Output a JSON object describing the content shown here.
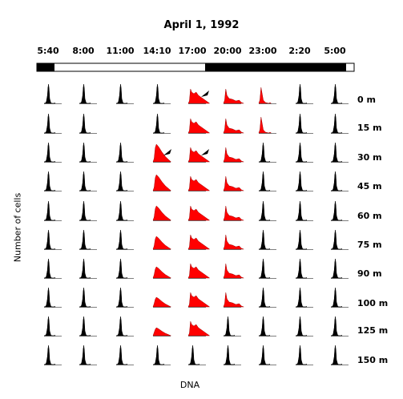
{
  "chart_data": {
    "type": "histogram-grid",
    "title": "April 1, 1992",
    "xlabel": "DNA",
    "ylabel": "Number of cells",
    "times": [
      "5:40",
      "8:00",
      "11:00",
      "14:10",
      "17:00",
      "20:00",
      "23:00",
      "2:20",
      "5:00"
    ],
    "depths": [
      "0 m",
      "15 m",
      "30 m",
      "45 m",
      "60 m",
      "75 m",
      "90 m",
      "100 m",
      "125 m",
      "150 m"
    ],
    "light_bar": [
      {
        "from": "5:40",
        "to": "6:45",
        "state": "dark"
      },
      {
        "from": "6:45",
        "to": "17:00",
        "state": "light"
      },
      {
        "from": "17:00",
        "to": "4:30",
        "state": "dark"
      },
      {
        "from": "4:30",
        "to": "5:00",
        "state": "light"
      }
    ],
    "colors": {
      "normal": "#000000",
      "highlight": "#ff0000"
    },
    "highlighted_cells": [
      [
        0,
        4
      ],
      [
        0,
        5
      ],
      [
        0,
        6
      ],
      [
        1,
        4
      ],
      [
        1,
        5
      ],
      [
        1,
        6
      ],
      [
        2,
        3
      ],
      [
        2,
        4
      ],
      [
        2,
        5
      ],
      [
        3,
        3
      ],
      [
        3,
        4
      ],
      [
        3,
        5
      ],
      [
        4,
        3
      ],
      [
        4,
        4
      ],
      [
        4,
        5
      ],
      [
        5,
        3
      ],
      [
        5,
        4
      ],
      [
        5,
        5
      ],
      [
        6,
        3
      ],
      [
        6,
        4
      ],
      [
        6,
        5
      ],
      [
        7,
        3
      ],
      [
        7,
        4
      ],
      [
        7,
        5
      ],
      [
        8,
        3
      ],
      [
        8,
        4
      ]
    ],
    "missing_cells": [
      [
        1,
        2
      ]
    ],
    "arrows": [
      [
        0,
        4
      ],
      [
        2,
        3
      ],
      [
        2,
        4
      ]
    ]
  }
}
